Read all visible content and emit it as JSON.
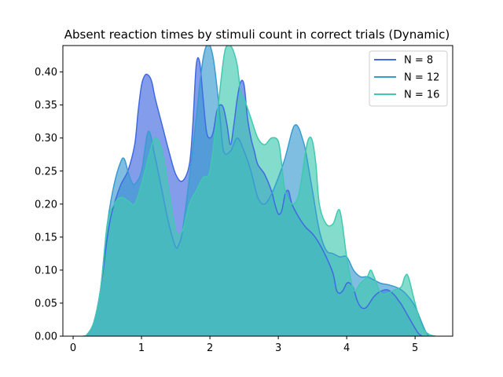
{
  "chart_data": {
    "type": "area",
    "title": "Absent reaction times by stimuli count in correct trials (Dynamic)",
    "xlabel": "",
    "ylabel": "",
    "xlim": [
      -0.15,
      5.55
    ],
    "ylim": [
      0,
      0.44
    ],
    "xticks": [
      0,
      1,
      2,
      3,
      4,
      5
    ],
    "yticks": [
      0.0,
      0.05,
      0.1,
      0.15,
      0.2,
      0.25,
      0.3,
      0.35,
      0.4
    ],
    "grid": false,
    "legend_position": "top-right",
    "series": [
      {
        "name": "N = 8",
        "color": "#4169e1",
        "x": [
          0.15,
          0.2,
          0.3,
          0.4,
          0.5,
          0.55,
          0.6,
          0.7,
          0.8,
          0.9,
          0.95,
          1.0,
          1.05,
          1.1,
          1.15,
          1.2,
          1.3,
          1.4,
          1.5,
          1.6,
          1.7,
          1.75,
          1.8,
          1.85,
          1.9,
          1.95,
          2.0,
          2.05,
          2.1,
          2.15,
          2.2,
          2.25,
          2.3,
          2.35,
          2.4,
          2.45,
          2.5,
          2.55,
          2.6,
          2.65,
          2.7,
          2.8,
          2.9,
          2.95,
          3.0,
          3.05,
          3.1,
          3.15,
          3.2,
          3.3,
          3.4,
          3.5,
          3.6,
          3.7,
          3.8,
          3.85,
          3.9,
          3.95,
          4.0,
          4.05,
          4.1,
          4.15,
          4.2,
          4.25,
          4.3,
          4.4,
          4.5,
          4.6,
          4.7,
          4.75,
          4.8,
          4.9,
          5.0,
          5.05,
          5.1
        ],
        "y": [
          0.0,
          0.002,
          0.02,
          0.07,
          0.15,
          0.18,
          0.2,
          0.23,
          0.25,
          0.29,
          0.34,
          0.38,
          0.395,
          0.395,
          0.385,
          0.36,
          0.32,
          0.28,
          0.245,
          0.235,
          0.26,
          0.32,
          0.41,
          0.415,
          0.36,
          0.31,
          0.3,
          0.31,
          0.34,
          0.35,
          0.345,
          0.32,
          0.29,
          0.32,
          0.36,
          0.385,
          0.38,
          0.33,
          0.3,
          0.28,
          0.26,
          0.245,
          0.22,
          0.2,
          0.185,
          0.19,
          0.215,
          0.22,
          0.2,
          0.18,
          0.165,
          0.155,
          0.14,
          0.12,
          0.095,
          0.07,
          0.065,
          0.07,
          0.08,
          0.08,
          0.072,
          0.055,
          0.045,
          0.042,
          0.045,
          0.06,
          0.068,
          0.07,
          0.062,
          0.055,
          0.048,
          0.03,
          0.012,
          0.004,
          0.0
        ]
      },
      {
        "name": "N = 12",
        "color": "#3a9bd0",
        "x": [
          0.15,
          0.2,
          0.3,
          0.4,
          0.5,
          0.6,
          0.7,
          0.75,
          0.8,
          0.85,
          0.9,
          1.0,
          1.1,
          1.2,
          1.3,
          1.4,
          1.5,
          1.55,
          1.6,
          1.7,
          1.8,
          1.85,
          1.9,
          1.95,
          2.0,
          2.05,
          2.1,
          2.15,
          2.2,
          2.3,
          2.4,
          2.5,
          2.6,
          2.7,
          2.8,
          2.9,
          3.0,
          3.1,
          3.2,
          3.25,
          3.3,
          3.35,
          3.4,
          3.5,
          3.6,
          3.7,
          3.8,
          3.9,
          4.0,
          4.1,
          4.2,
          4.3,
          4.4,
          4.5,
          4.6,
          4.7,
          4.8,
          4.9,
          5.0,
          5.1,
          5.15,
          5.2
        ],
        "y": [
          0.0,
          0.002,
          0.02,
          0.07,
          0.17,
          0.23,
          0.265,
          0.268,
          0.25,
          0.235,
          0.23,
          0.25,
          0.31,
          0.27,
          0.22,
          0.17,
          0.135,
          0.14,
          0.16,
          0.24,
          0.33,
          0.38,
          0.42,
          0.44,
          0.44,
          0.42,
          0.38,
          0.33,
          0.28,
          0.28,
          0.3,
          0.28,
          0.25,
          0.21,
          0.2,
          0.215,
          0.24,
          0.27,
          0.31,
          0.32,
          0.315,
          0.3,
          0.28,
          0.22,
          0.16,
          0.13,
          0.125,
          0.12,
          0.12,
          0.1,
          0.09,
          0.09,
          0.085,
          0.08,
          0.078,
          0.075,
          0.07,
          0.06,
          0.045,
          0.02,
          0.008,
          0.0
        ]
      },
      {
        "name": "N = 16",
        "color": "#40c9b0",
        "x": [
          0.15,
          0.2,
          0.3,
          0.4,
          0.5,
          0.6,
          0.7,
          0.8,
          0.9,
          1.0,
          1.1,
          1.2,
          1.3,
          1.4,
          1.5,
          1.6,
          1.7,
          1.8,
          1.9,
          2.0,
          2.1,
          2.2,
          2.25,
          2.3,
          2.35,
          2.4,
          2.45,
          2.5,
          2.55,
          2.6,
          2.7,
          2.8,
          2.9,
          3.0,
          3.05,
          3.1,
          3.2,
          3.3,
          3.4,
          3.45,
          3.5,
          3.55,
          3.6,
          3.7,
          3.8,
          3.9,
          4.0,
          4.1,
          4.2,
          4.3,
          4.35,
          4.4,
          4.5,
          4.6,
          4.7,
          4.8,
          4.85,
          4.9,
          5.0,
          5.1,
          5.2,
          5.3
        ],
        "y": [
          0.0,
          0.002,
          0.02,
          0.07,
          0.17,
          0.2,
          0.21,
          0.205,
          0.2,
          0.23,
          0.27,
          0.3,
          0.28,
          0.22,
          0.16,
          0.16,
          0.2,
          0.22,
          0.24,
          0.25,
          0.33,
          0.42,
          0.44,
          0.44,
          0.43,
          0.41,
          0.37,
          0.36,
          0.345,
          0.33,
          0.3,
          0.29,
          0.3,
          0.295,
          0.26,
          0.22,
          0.2,
          0.215,
          0.28,
          0.3,
          0.295,
          0.26,
          0.2,
          0.17,
          0.17,
          0.19,
          0.12,
          0.07,
          0.08,
          0.09,
          0.1,
          0.09,
          0.065,
          0.065,
          0.07,
          0.075,
          0.09,
          0.09,
          0.05,
          0.015,
          0.003,
          0.0
        ]
      }
    ]
  }
}
